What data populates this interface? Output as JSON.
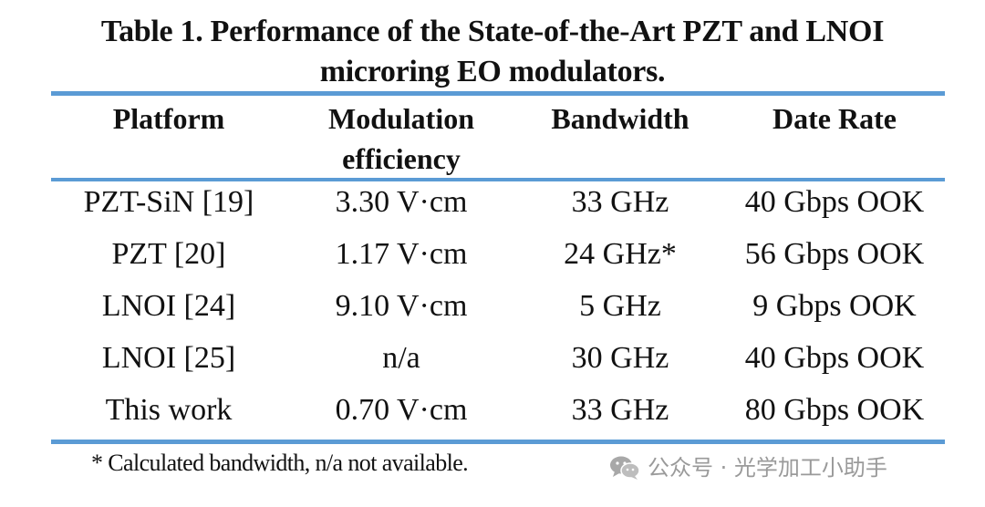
{
  "caption": {
    "line1": "Table 1.  Performance of the State-of-the-Art PZT and LNOI",
    "line2": "microring EO modulators."
  },
  "table": {
    "headers": [
      {
        "line1": "Platform",
        "line2": ""
      },
      {
        "line1": "Modulation",
        "line2": "efficiency"
      },
      {
        "line1": "Bandwidth",
        "line2": ""
      },
      {
        "line1": "Date Rate",
        "line2": ""
      }
    ],
    "rows": [
      [
        "PZT-SiN [19]",
        "3.30 V·cm",
        "33 GHz",
        "40 Gbps OOK"
      ],
      [
        "PZT [20]",
        "1.17 V·cm",
        "24 GHz*",
        "56 Gbps OOK"
      ],
      [
        "LNOI [24]",
        "9.10 V·cm",
        "5 GHz",
        "9 Gbps OOK"
      ],
      [
        "LNOI [25]",
        "n/a",
        "30 GHz",
        "40 Gbps OOK"
      ],
      [
        "This work",
        "0.70 V·cm",
        "33 GHz",
        "80 Gbps OOK"
      ]
    ]
  },
  "footnote": "* Calculated bandwidth, n/a not available.",
  "watermark": {
    "icon": "wechat-icon",
    "text": "公众号 · 光学加工小助手"
  },
  "colors": {
    "rule": "#5b9bd5",
    "text": "#111111",
    "watermark": "#9a9a9a"
  }
}
